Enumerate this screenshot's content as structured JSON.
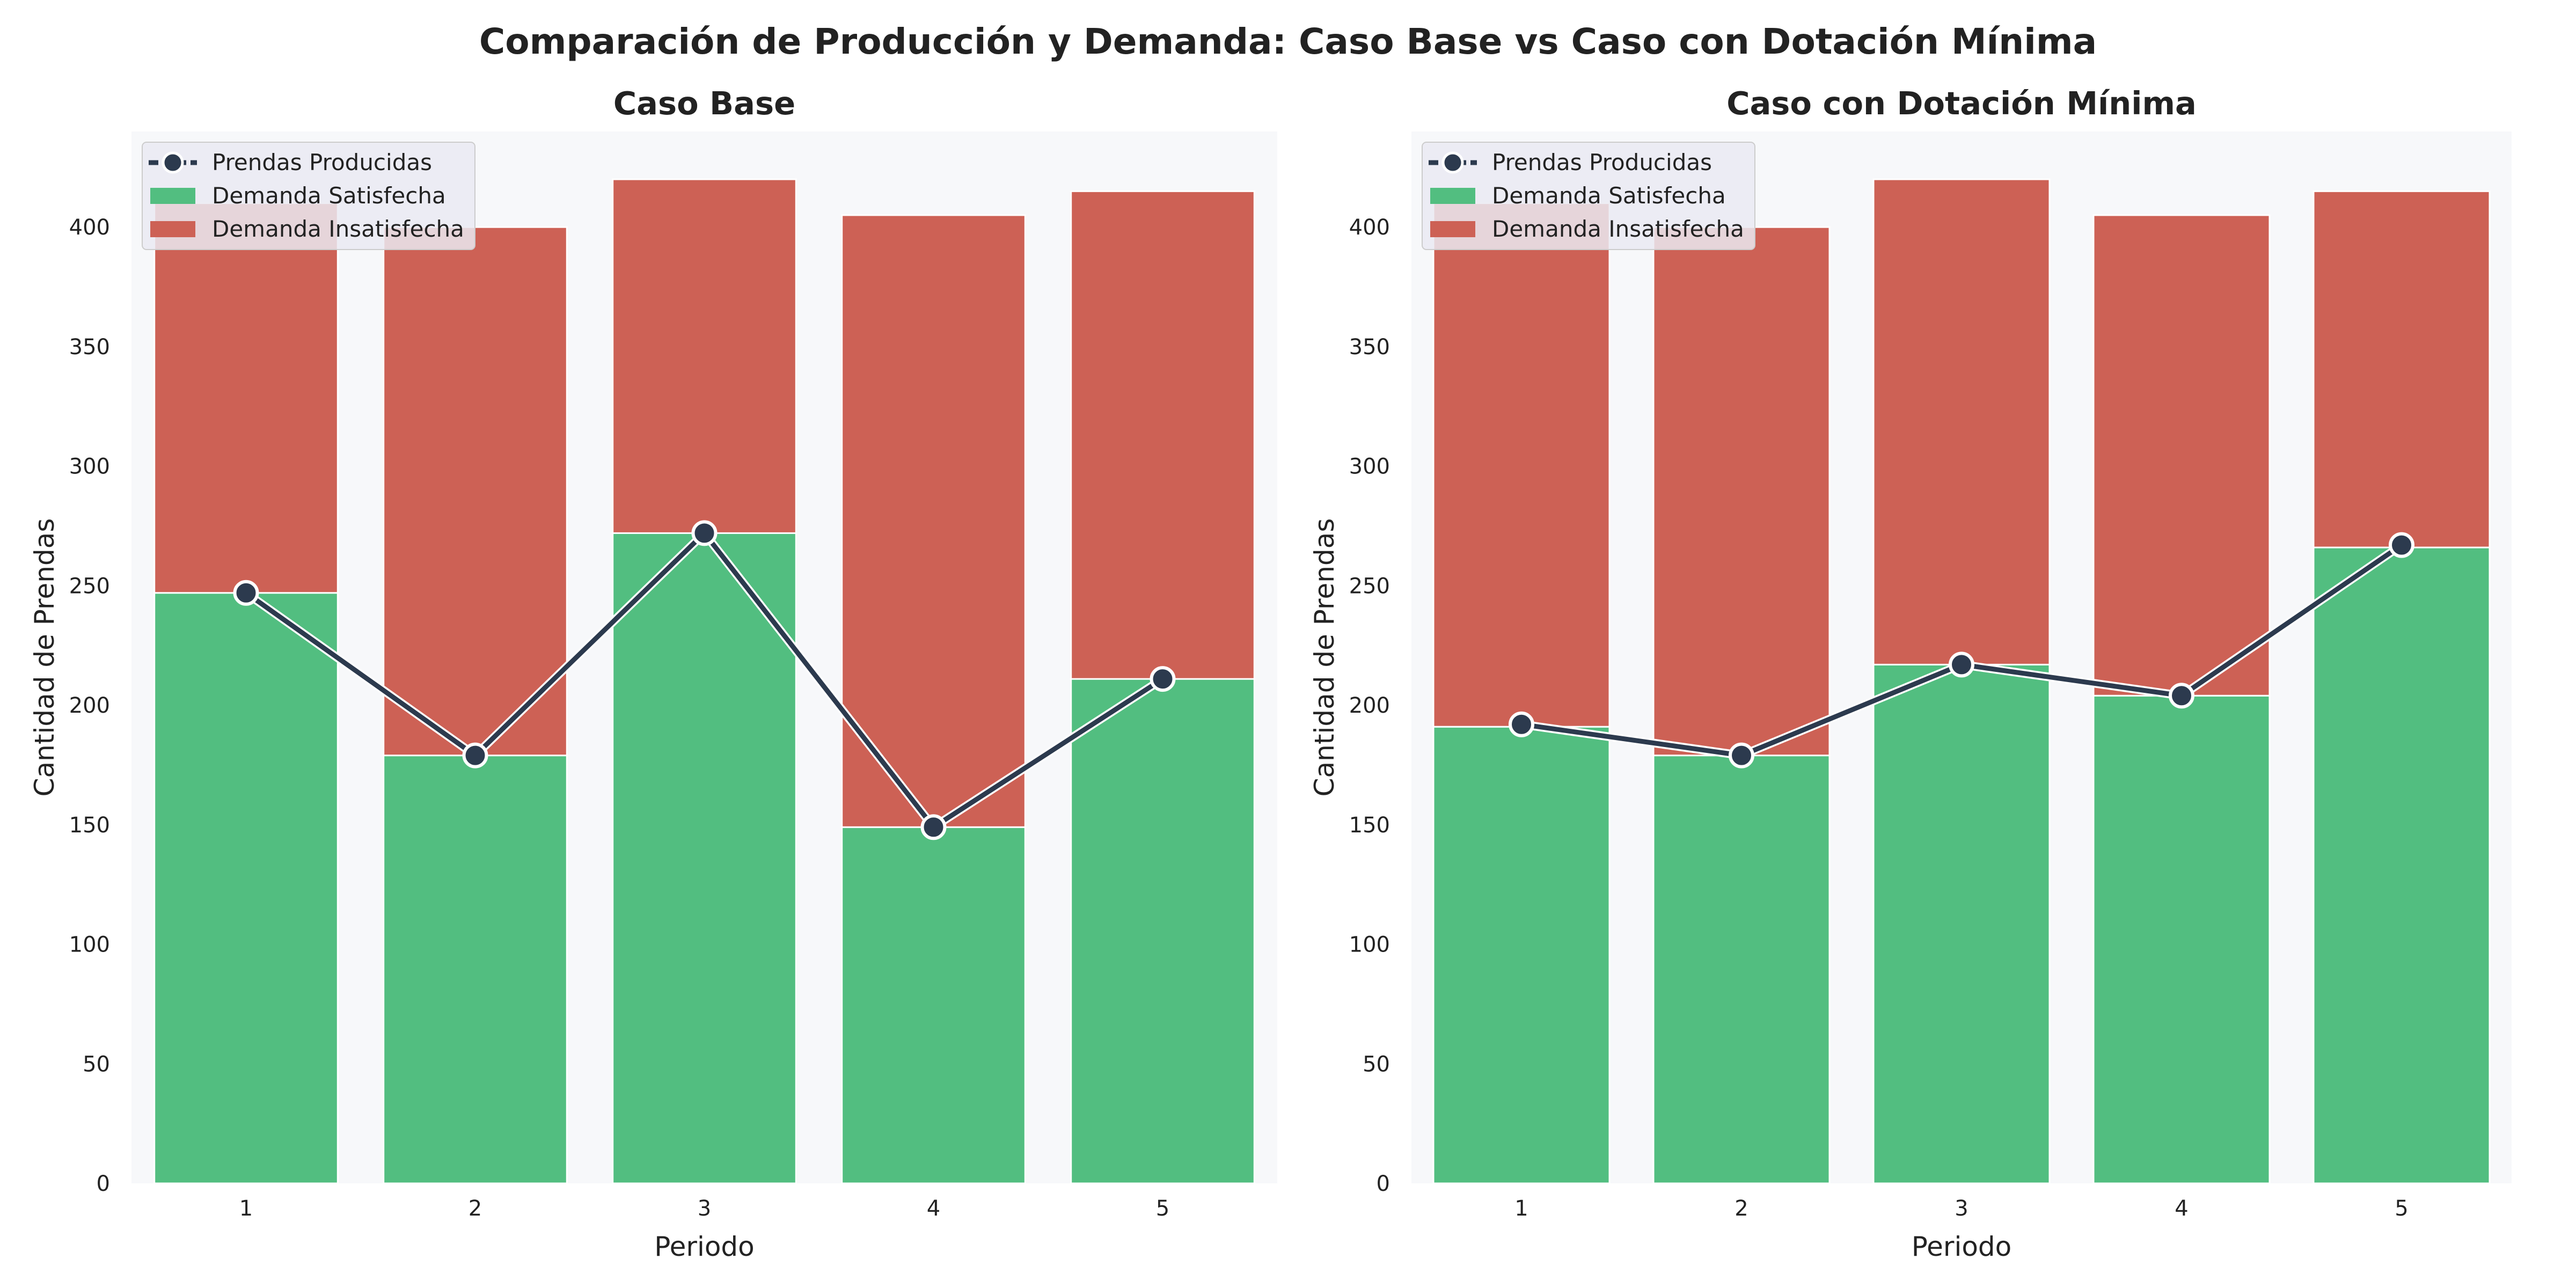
{
  "suptitle": "Comparación de Producción y Demanda: Caso Base vs Caso con Dotación Mínima",
  "colors": {
    "satisfied": "#52be80",
    "unsatisfied": "#cd6155",
    "line": "#2c3a4e",
    "plot_bg": "#f7f8fa"
  },
  "chart_data": [
    {
      "type": "bar",
      "stacked": true,
      "title": "Caso Base",
      "xlabel": "Periodo",
      "ylabel": "Cantidad de Prendas",
      "categories": [
        "1",
        "2",
        "3",
        "4",
        "5"
      ],
      "ylim": [
        0,
        440
      ],
      "yticks": [
        0,
        50,
        100,
        150,
        200,
        250,
        300,
        350,
        400
      ],
      "legend": "top-left",
      "grid": false,
      "series": [
        {
          "name": "Demanda Satisfecha",
          "type": "bar",
          "color": "#52be80",
          "values": [
            247,
            179,
            272,
            149,
            211
          ]
        },
        {
          "name": "Demanda Insatisfecha",
          "type": "bar",
          "color": "#cd6155",
          "values": [
            163,
            221,
            148,
            256,
            204
          ]
        },
        {
          "name": "Prendas Producidas",
          "type": "line",
          "color": "#2c3a4e",
          "values": [
            247,
            179,
            272,
            149,
            211
          ]
        }
      ]
    },
    {
      "type": "bar",
      "stacked": true,
      "title": "Caso con Dotación Mínima",
      "xlabel": "Periodo",
      "ylabel": "Cantidad de Prendas",
      "categories": [
        "1",
        "2",
        "3",
        "4",
        "5"
      ],
      "ylim": [
        0,
        440
      ],
      "yticks": [
        0,
        50,
        100,
        150,
        200,
        250,
        300,
        350,
        400
      ],
      "legend": "top-left",
      "grid": false,
      "series": [
        {
          "name": "Demanda Satisfecha",
          "type": "bar",
          "color": "#52be80",
          "values": [
            191,
            179,
            217,
            204,
            266
          ]
        },
        {
          "name": "Demanda Insatisfecha",
          "type": "bar",
          "color": "#cd6155",
          "values": [
            219,
            221,
            203,
            201,
            149
          ]
        },
        {
          "name": "Prendas Producidas",
          "type": "line",
          "color": "#2c3a4e",
          "values": [
            192,
            179,
            217,
            204,
            267
          ]
        }
      ]
    }
  ]
}
